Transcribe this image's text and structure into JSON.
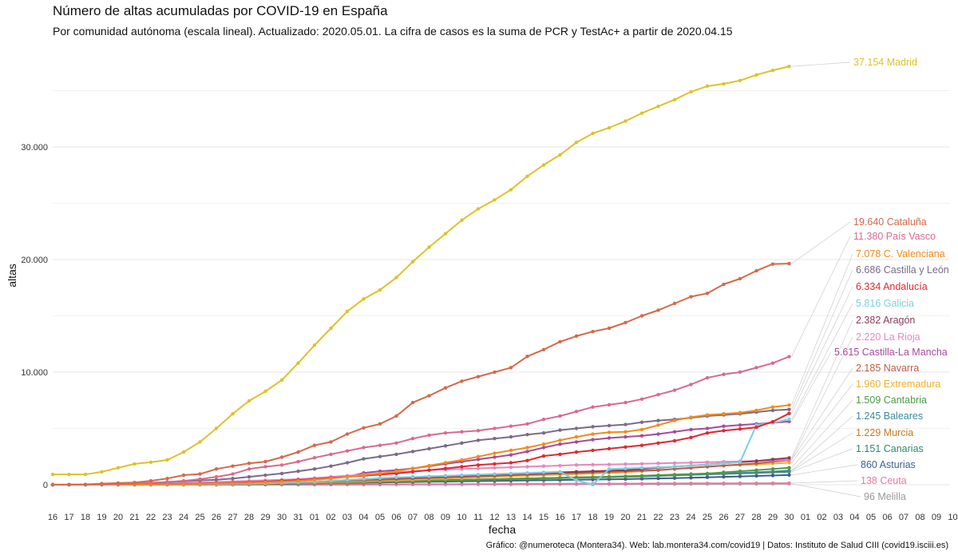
{
  "chart_data": {
    "type": "line",
    "title": "Número de altas acumuladas por COVID-19 en España",
    "subtitle": "Por comunidad autónoma (escala lineal). Actualizado: 2020.05.01. La cifra de casos es la suma de PCR y TestAc+ a partir de 2020.04.15",
    "caption": "Gráfico: @numeroteca (Montera34). Web: lab.montera34.com/covid19 | Datos: Instituto de Salud CIII (covid19.isciii.es)",
    "xlabel": "fecha",
    "ylabel": "altas",
    "ylim": [
      0,
      37154
    ],
    "yticks": [
      0,
      10000,
      20000,
      30000
    ],
    "ytick_labels": [
      "0",
      "10.000",
      "20.000",
      "30.000"
    ],
    "x_tick_labels": [
      "16",
      "17",
      "18",
      "19",
      "20",
      "21",
      "22",
      "23",
      "24",
      "25",
      "26",
      "27",
      "28",
      "29",
      "30",
      "31",
      "01",
      "02",
      "03",
      "04",
      "05",
      "06",
      "07",
      "08",
      "09",
      "10",
      "11",
      "12",
      "13",
      "14",
      "15",
      "16",
      "17",
      "18",
      "19",
      "20",
      "21",
      "22",
      "23",
      "24",
      "25",
      "26",
      "27",
      "28",
      "29",
      "30",
      "01",
      "02",
      "03",
      "04",
      "05",
      "06",
      "07",
      "08",
      "09",
      "10"
    ],
    "x_dates_start": "2020-03-16",
    "grid": true,
    "legend": "end-labels-right",
    "series": [
      {
        "name": "Madrid",
        "label": "37.154 Madrid",
        "color": "#dcc22b",
        "values": [
          917,
          917,
          917,
          1150,
          1500,
          1850,
          2000,
          2200,
          2900,
          3800,
          5000,
          6300,
          7450,
          8300,
          9300,
          10800,
          12400,
          13900,
          15400,
          16500,
          17300,
          18400,
          19800,
          21100,
          22300,
          23500,
          24500,
          25300,
          26200,
          27400,
          28400,
          29300,
          30400,
          31200,
          31700,
          32300,
          33000,
          33600,
          34200,
          34900,
          35400,
          35600,
          35900,
          36400,
          36800,
          37154
        ]
      },
      {
        "name": "Cataluña",
        "label": "19.640 Cataluña",
        "color": "#d4694a",
        "values": [
          10,
          20,
          30,
          100,
          150,
          200,
          350,
          550,
          850,
          950,
          1400,
          1650,
          1900,
          2050,
          2450,
          2900,
          3500,
          3800,
          4500,
          5050,
          5400,
          6100,
          7300,
          7900,
          8600,
          9200,
          9600,
          10000,
          10400,
          11400,
          12000,
          12700,
          13200,
          13600,
          13900,
          14400,
          15000,
          15500,
          16100,
          16700,
          17000,
          17800,
          18300,
          19000,
          19600,
          19640
        ]
      },
      {
        "name": "País Vasco",
        "label": "11.380 País Vasco",
        "color": "#d86a8e",
        "values": [
          0,
          10,
          20,
          50,
          80,
          120,
          180,
          250,
          350,
          500,
          700,
          950,
          1400,
          1600,
          1750,
          2050,
          2400,
          2700,
          3000,
          3300,
          3500,
          3700,
          4100,
          4400,
          4600,
          4700,
          4800,
          5000,
          5200,
          5400,
          5800,
          6100,
          6500,
          6900,
          7100,
          7300,
          7600,
          8000,
          8400,
          8900,
          9500,
          9800,
          10000,
          10400,
          10800,
          11380
        ]
      },
      {
        "name": "C. Valenciana",
        "label": "7.078 C. Valenciana",
        "color": "#f28a1c",
        "values": [
          0,
          0,
          0,
          0,
          0,
          0,
          20,
          40,
          60,
          80,
          100,
          130,
          170,
          220,
          280,
          350,
          450,
          550,
          700,
          850,
          1000,
          1200,
          1450,
          1700,
          1950,
          2200,
          2500,
          2800,
          3050,
          3300,
          3600,
          3950,
          4250,
          4500,
          4650,
          4700,
          4900,
          5300,
          5700,
          6000,
          6200,
          6300,
          6400,
          6600,
          6900,
          7078
        ]
      },
      {
        "name": "Castilla y León",
        "label": "6.686 Castilla y León",
        "color": "#7a6b8a",
        "values": [
          0,
          0,
          10,
          30,
          60,
          90,
          150,
          220,
          300,
          380,
          450,
          550,
          700,
          850,
          1000,
          1200,
          1400,
          1650,
          1950,
          2300,
          2500,
          2700,
          2950,
          3200,
          3450,
          3700,
          3950,
          4100,
          4250,
          4450,
          4600,
          4850,
          5000,
          5150,
          5250,
          5350,
          5550,
          5700,
          5800,
          5950,
          6100,
          6200,
          6300,
          6450,
          6600,
          6686
        ]
      },
      {
        "name": "Andalucía",
        "label": "6.334 Andalucía",
        "color": "#e0282f",
        "values": [
          0,
          0,
          0,
          0,
          0,
          20,
          40,
          60,
          80,
          100,
          130,
          170,
          220,
          280,
          350,
          420,
          500,
          600,
          700,
          800,
          900,
          1000,
          1150,
          1300,
          1450,
          1600,
          1750,
          1850,
          1950,
          2150,
          2550,
          2700,
          2900,
          3050,
          3200,
          3350,
          3500,
          3700,
          3900,
          4200,
          4600,
          4800,
          4950,
          5100,
          5600,
          6334
        ]
      },
      {
        "name": "Galicia",
        "label": "5.816 Galicia",
        "color": "#7ecde0",
        "values": [
          0,
          0,
          0,
          0,
          0,
          0,
          10,
          20,
          30,
          40,
          60,
          80,
          100,
          130,
          170,
          220,
          280,
          350,
          420,
          500,
          580,
          650,
          700,
          750,
          800,
          850,
          900,
          950,
          1000,
          1050,
          1100,
          1150,
          400,
          0,
          1400,
          1450,
          1500,
          1550,
          1600,
          1700,
          1800,
          1900,
          2000,
          5300,
          5500,
          5816
        ]
      },
      {
        "name": "Aragón",
        "label": "2.382 Aragón",
        "color": "#8e3a5a",
        "values": [
          0,
          0,
          0,
          0,
          0,
          0,
          10,
          20,
          30,
          40,
          60,
          80,
          100,
          130,
          170,
          220,
          280,
          350,
          420,
          500,
          550,
          600,
          650,
          700,
          750,
          800,
          850,
          900,
          950,
          1000,
          1050,
          1100,
          1150,
          1200,
          1250,
          1300,
          1400,
          1500,
          1600,
          1700,
          1800,
          1900,
          2000,
          2100,
          2250,
          2382
        ]
      },
      {
        "name": "La Rioja",
        "label": "2.220 La Rioja",
        "color": "#e787be",
        "values": [
          0,
          0,
          0,
          0,
          10,
          30,
          60,
          100,
          150,
          200,
          250,
          300,
          350,
          400,
          450,
          500,
          600,
          700,
          800,
          900,
          1000,
          1100,
          1200,
          1300,
          1350,
          1400,
          1450,
          1500,
          1550,
          1600,
          1650,
          1700,
          1750,
          1780,
          1800,
          1830,
          1860,
          1900,
          1930,
          1960,
          2000,
          2040,
          2080,
          2120,
          2170,
          2220
        ]
      },
      {
        "name": "Castilla-La Mancha",
        "label": "5.615 Castilla-La Mancha",
        "color": "#a94a9b",
        "values": [
          0,
          0,
          0,
          0,
          0,
          0,
          10,
          20,
          40,
          60,
          90,
          130,
          180,
          240,
          310,
          390,
          480,
          580,
          700,
          1050,
          1200,
          1300,
          1450,
          1650,
          1850,
          2050,
          2250,
          2450,
          2650,
          2950,
          3300,
          3600,
          3800,
          4000,
          4150,
          4250,
          4350,
          4500,
          4700,
          4900,
          5000,
          5200,
          5300,
          5400,
          5500,
          5615
        ]
      },
      {
        "name": "Navarra",
        "label": "2.185 Navarra",
        "color": "#c05b4a",
        "values": [
          0,
          0,
          0,
          0,
          0,
          0,
          10,
          20,
          30,
          40,
          60,
          80,
          100,
          130,
          160,
          200,
          250,
          300,
          350,
          400,
          450,
          500,
          550,
          600,
          650,
          700,
          750,
          800,
          850,
          900,
          950,
          1000,
          1050,
          1100,
          1150,
          1200,
          1250,
          1300,
          1400,
          1500,
          1600,
          1700,
          1800,
          1900,
          2050,
          2185
        ]
      },
      {
        "name": "Extremadura",
        "label": "1.960 Extremadura",
        "color": "#f2b027",
        "values": [
          0,
          0,
          0,
          0,
          0,
          0,
          0,
          10,
          20,
          30,
          50,
          70,
          90,
          110,
          140,
          170,
          200,
          240,
          280,
          320,
          360,
          400,
          450,
          500,
          550,
          600,
          650,
          700,
          750,
          800,
          850,
          900,
          950,
          1000,
          1050,
          1100,
          1200,
          1300,
          1400,
          1500,
          1600,
          1700,
          1750,
          1800,
          1880,
          1960
        ]
      },
      {
        "name": "Cantabria",
        "label": "1.509 Cantabria",
        "color": "#4f9a47",
        "values": [
          0,
          0,
          0,
          0,
          0,
          0,
          0,
          10,
          20,
          30,
          40,
          50,
          70,
          90,
          110,
          130,
          160,
          190,
          220,
          250,
          280,
          310,
          340,
          370,
          400,
          430,
          460,
          490,
          520,
          550,
          580,
          610,
          640,
          670,
          700,
          750,
          800,
          850,
          900,
          950,
          1000,
          1100,
          1200,
          1300,
          1400,
          1509
        ]
      },
      {
        "name": "Baleares",
        "label": "1.245 Baleares",
        "color": "#3a8a9c",
        "values": [
          0,
          0,
          0,
          0,
          0,
          0,
          0,
          10,
          20,
          30,
          40,
          50,
          70,
          90,
          110,
          130,
          150,
          180,
          210,
          240,
          270,
          300,
          330,
          360,
          390,
          420,
          450,
          480,
          510,
          540,
          570,
          600,
          630,
          660,
          690,
          720,
          760,
          800,
          850,
          900,
          950,
          1000,
          1050,
          1100,
          1170,
          1245
        ]
      },
      {
        "name": "Murcia",
        "label": "1.229 Murcia",
        "color": "#c77b1f",
        "values": [
          0,
          0,
          0,
          0,
          0,
          0,
          0,
          10,
          20,
          30,
          40,
          50,
          60,
          80,
          100,
          120,
          140,
          160,
          190,
          220,
          250,
          280,
          310,
          340,
          370,
          400,
          430,
          460,
          490,
          520,
          550,
          580,
          610,
          640,
          670,
          700,
          740,
          780,
          830,
          880,
          930,
          980,
          1030,
          1080,
          1150,
          1229
        ]
      },
      {
        "name": "Canarias",
        "label": "1.151 Canarias",
        "color": "#2f8a66",
        "values": [
          0,
          0,
          0,
          0,
          0,
          0,
          10,
          20,
          30,
          40,
          50,
          60,
          80,
          100,
          120,
          140,
          170,
          200,
          230,
          260,
          290,
          320,
          350,
          380,
          410,
          440,
          470,
          500,
          530,
          560,
          590,
          620,
          650,
          680,
          710,
          740,
          770,
          800,
          840,
          880,
          920,
          960,
          1000,
          1040,
          1100,
          1151
        ]
      },
      {
        "name": "Asturias",
        "label": "860 Asturias",
        "color": "#3b5f95",
        "values": [
          0,
          0,
          0,
          0,
          0,
          0,
          0,
          10,
          20,
          30,
          40,
          50,
          60,
          70,
          80,
          100,
          120,
          140,
          160,
          180,
          200,
          220,
          240,
          260,
          280,
          300,
          320,
          340,
          360,
          380,
          400,
          420,
          440,
          460,
          480,
          500,
          530,
          560,
          590,
          620,
          660,
          700,
          740,
          780,
          820,
          860
        ]
      },
      {
        "name": "Ceuta",
        "label": "138 Ceuta",
        "color": "#e27aa2",
        "values": [
          0,
          0,
          0,
          0,
          0,
          0,
          0,
          0,
          0,
          0,
          0,
          0,
          0,
          0,
          5,
          5,
          10,
          10,
          15,
          20,
          25,
          30,
          35,
          40,
          45,
          50,
          55,
          60,
          65,
          70,
          75,
          80,
          85,
          90,
          95,
          100,
          105,
          110,
          115,
          118,
          121,
          124,
          127,
          130,
          134,
          138
        ]
      },
      {
        "name": "Melilla",
        "label": "96 Melilla",
        "color": "#999999",
        "values": [
          0,
          0,
          0,
          0,
          0,
          0,
          0,
          0,
          0,
          0,
          0,
          0,
          0,
          0,
          2,
          4,
          6,
          8,
          10,
          12,
          15,
          18,
          21,
          24,
          27,
          30,
          33,
          36,
          39,
          42,
          45,
          48,
          51,
          54,
          57,
          60,
          63,
          66,
          69,
          72,
          75,
          80,
          84,
          88,
          92,
          96
        ]
      }
    ]
  }
}
